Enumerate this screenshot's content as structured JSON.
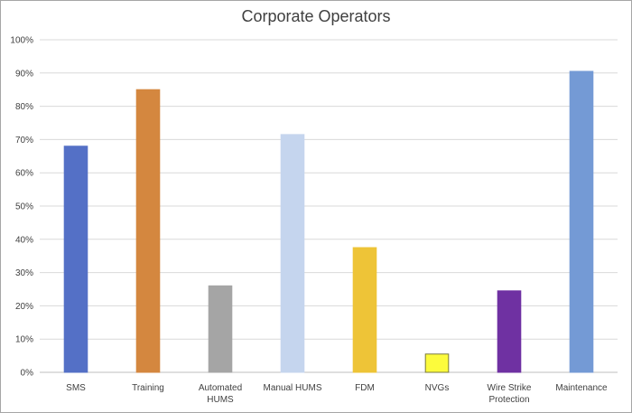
{
  "chart_data": {
    "type": "bar",
    "title": "Corporate Operators",
    "xlabel": "",
    "ylabel": "",
    "ylim": [
      0,
      1
    ],
    "grid": true,
    "legend": "none",
    "y_tick_labels": [
      "0%",
      "10%",
      "20%",
      "30%",
      "40%",
      "50%",
      "60%",
      "70%",
      "80%",
      "90%",
      "100%"
    ],
    "categories": [
      [
        "SMS"
      ],
      [
        "Training"
      ],
      [
        "Automated",
        "HUMS"
      ],
      [
        "Manual HUMS"
      ],
      [
        "FDM"
      ],
      [
        "NVGs"
      ],
      [
        "Wire Strike",
        "Protection"
      ],
      [
        "Maintenance"
      ]
    ],
    "values": [
      0.68,
      0.85,
      0.26,
      0.715,
      0.375,
      0.055,
      0.245,
      0.905
    ],
    "colors": [
      "#5470c6",
      "#d4873f",
      "#a5a5a5",
      "#c5d5ee",
      "#eec437",
      "#fcfb3c",
      "#6f31a2",
      "#749ad5"
    ],
    "bar_borders": [
      "#5470c6",
      "#d4873f",
      "#a5a5a5",
      "#c5d5ee",
      "#eec437",
      "#7a7a3c",
      "#6f31a2",
      "#749ad5"
    ]
  }
}
